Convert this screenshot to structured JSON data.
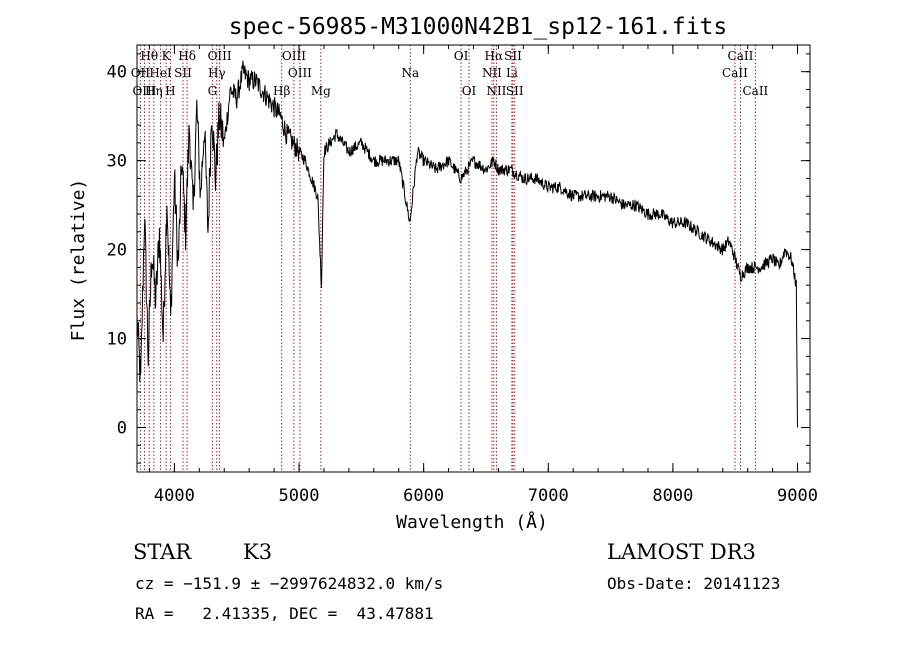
{
  "chart_data": {
    "type": "line",
    "title": "spec-56985-M31000N42B1_sp12-161.fits",
    "xlabel": "Wavelength (Å)",
    "ylabel": "Flux (relative)",
    "xlim": [
      3700,
      9100
    ],
    "ylim": [
      -5,
      43
    ],
    "x_ticks": [
      4000,
      5000,
      6000,
      7000,
      8000,
      9000
    ],
    "y_ticks": [
      0,
      10,
      20,
      30,
      40
    ],
    "series": [
      {
        "name": "spectrum",
        "x": [
          3700,
          3730,
          3760,
          3790,
          3820,
          3850,
          3880,
          3910,
          3940,
          3970,
          4000,
          4030,
          4060,
          4090,
          4120,
          4150,
          4180,
          4210,
          4240,
          4270,
          4300,
          4330,
          4360,
          4400,
          4450,
          4500,
          4550,
          4600,
          4650,
          4700,
          4750,
          4800,
          4850,
          4900,
          4950,
          5000,
          5050,
          5100,
          5150,
          5180,
          5200,
          5250,
          5300,
          5400,
          5500,
          5600,
          5700,
          5800,
          5890,
          5950,
          6000,
          6100,
          6200,
          6300,
          6400,
          6500,
          6563,
          6600,
          6700,
          6800,
          6900,
          7000,
          7100,
          7200,
          7300,
          7400,
          7500,
          7600,
          7700,
          7800,
          7900,
          8000,
          8100,
          8200,
          8300,
          8400,
          8450,
          8500,
          8542,
          8600,
          8662,
          8700,
          8800,
          8850,
          8900,
          8950,
          8990,
          9000
        ],
        "y": [
          12,
          5,
          24,
          8,
          20,
          14,
          22,
          10,
          26,
          12,
          28,
          18,
          30,
          22,
          34,
          24,
          36,
          26,
          34,
          22,
          36,
          28,
          35,
          32,
          38,
          37,
          40,
          39,
          39,
          38,
          37,
          36,
          35,
          33,
          32,
          31,
          30,
          28,
          26,
          16,
          31,
          32,
          33,
          31,
          32,
          30,
          30,
          30,
          23,
          31,
          30,
          29,
          30,
          28,
          30,
          29,
          30,
          29,
          29,
          28,
          28,
          27,
          27,
          26,
          26,
          26,
          26,
          25,
          25,
          24,
          24,
          23,
          23,
          22,
          21,
          20,
          21,
          19,
          17,
          18,
          18,
          18,
          19,
          18,
          20,
          19,
          16,
          0
        ]
      }
    ],
    "line_markers": [
      {
        "label": "Hθ",
        "x": 3798,
        "row": 0
      },
      {
        "label": "OII",
        "x": 3727,
        "row": 1
      },
      {
        "label": "OIII",
        "x": 3760,
        "row": 2
      },
      {
        "label": "Hη",
        "x": 3835,
        "row": 2
      },
      {
        "label": "K",
        "x": 3934,
        "row": 0
      },
      {
        "label": "HeI",
        "x": 3889,
        "row": 1
      },
      {
        "label": "SII",
        "x": 4069,
        "row": 1
      },
      {
        "label": "H",
        "x": 3968,
        "row": 2
      },
      {
        "label": "Hδ",
        "x": 4102,
        "row": 0
      },
      {
        "label": "OIII",
        "x": 4363,
        "row": 0
      },
      {
        "label": "Hγ",
        "x": 4340,
        "row": 1
      },
      {
        "label": "G",
        "x": 4305,
        "row": 2
      },
      {
        "label": "OIII",
        "x": 4959,
        "row": 0
      },
      {
        "label": "OIII",
        "x": 5007,
        "row": 1
      },
      {
        "label": "Hβ",
        "x": 4861,
        "row": 2
      },
      {
        "label": "Mg",
        "x": 5175,
        "row": 2
      },
      {
        "label": "Na",
        "x": 5893,
        "row": 1
      },
      {
        "label": "OI",
        "x": 6300,
        "row": 0
      },
      {
        "label": "OI",
        "x": 6364,
        "row": 2
      },
      {
        "label": "Hα",
        "x": 6563,
        "row": 0
      },
      {
        "label": "NII",
        "x": 6548,
        "row": 1
      },
      {
        "label": "NII",
        "x": 6584,
        "row": 2
      },
      {
        "label": "SII",
        "x": 6717,
        "row": 0
      },
      {
        "label": "Li",
        "x": 6708,
        "row": 1
      },
      {
        "label": "SII",
        "x": 6731,
        "row": 2
      },
      {
        "label": "CaII",
        "x": 8498,
        "row": 1
      },
      {
        "label": "CaII",
        "x": 8542,
        "row": 0
      },
      {
        "label": "CaII",
        "x": 8662,
        "row": 2
      }
    ],
    "marker_color": "#b22222",
    "line_color": "#000000"
  },
  "info": {
    "object_class": "STAR",
    "subclass": "K3",
    "survey": "LAMOST DR3",
    "velocity": "cz = −151.9 ± −2997624832.0 km/s",
    "obs_date": "Obs-Date: 20141123",
    "coords": "RA =   2.41335, DEC =  43.47881"
  }
}
